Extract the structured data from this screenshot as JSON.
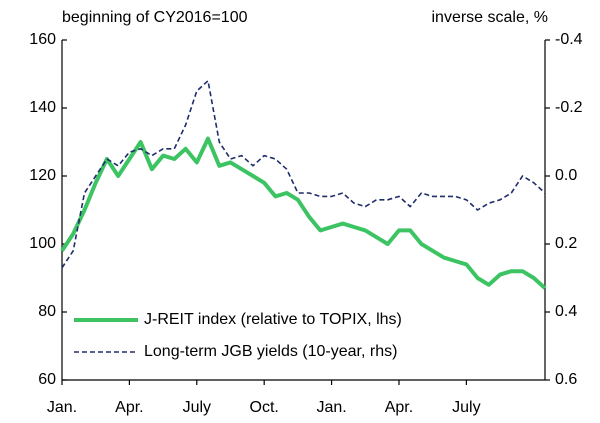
{
  "chart_data": {
    "type": "line",
    "y_label": "beginning of CY2016=100",
    "y2_label": "inverse scale, %",
    "x": [
      0,
      0.5,
      1,
      1.5,
      2,
      2.5,
      3,
      3.5,
      4,
      4.5,
      5,
      5.5,
      6,
      6.5,
      7,
      7.5,
      8,
      8.5,
      9,
      9.5,
      10,
      10.5,
      11,
      11.5,
      12,
      12.5,
      13,
      13.5,
      14,
      14.5,
      15,
      15.5,
      16,
      16.5,
      17,
      17.5,
      18,
      18.5,
      19,
      19.5,
      20,
      20.5,
      21,
      21.5
    ],
    "xlim": [
      0,
      21.5
    ],
    "xticks": [
      {
        "value": 0,
        "label": "Jan."
      },
      {
        "value": 3,
        "label": "Apr."
      },
      {
        "value": 6,
        "label": "July"
      },
      {
        "value": 9,
        "label": "Oct."
      },
      {
        "value": 12,
        "label": "Jan."
      },
      {
        "value": 15,
        "label": "Apr."
      },
      {
        "value": 18,
        "label": "July"
      }
    ],
    "ylim": [
      60,
      160
    ],
    "yticks": [
      60,
      80,
      100,
      120,
      140,
      160
    ],
    "y2lim": [
      0.6,
      -0.4
    ],
    "y2ticks": [
      0.6,
      0.4,
      0.2,
      {
        "value": 0,
        "label": "0.0"
      },
      -0.2,
      -0.4
    ],
    "legend": "lower left",
    "series": [
      {
        "name": "J-REIT index (relative to TOPIX, lhs)",
        "color": "#3cc463",
        "style": "solid",
        "values": [
          98,
          103,
          110,
          118,
          125,
          120,
          125,
          130,
          122,
          126,
          125,
          128,
          124,
          131,
          123,
          124,
          122,
          120,
          118,
          114,
          115,
          113,
          108,
          104,
          105,
          106,
          105,
          104,
          102,
          100,
          104,
          104,
          100,
          98,
          96,
          95,
          94,
          90,
          88,
          91,
          92,
          92,
          90,
          87
        ]
      },
      {
        "name": "Long-term JGB yields (10-year, rhs)",
        "color": "#1f2d6b",
        "style": "dashed",
        "axis": "y2",
        "values": [
          0.27,
          0.22,
          0.05,
          0.0,
          -0.05,
          -0.03,
          -0.07,
          -0.08,
          -0.06,
          -0.08,
          -0.08,
          -0.15,
          -0.25,
          -0.28,
          -0.1,
          -0.05,
          -0.06,
          -0.03,
          -0.06,
          -0.05,
          -0.02,
          0.05,
          0.05,
          0.06,
          0.06,
          0.05,
          0.08,
          0.09,
          0.07,
          0.07,
          0.06,
          0.09,
          0.05,
          0.06,
          0.06,
          0.06,
          0.07,
          0.1,
          0.08,
          0.07,
          0.05,
          0.0,
          0.02,
          0.05
        ]
      }
    ]
  }
}
